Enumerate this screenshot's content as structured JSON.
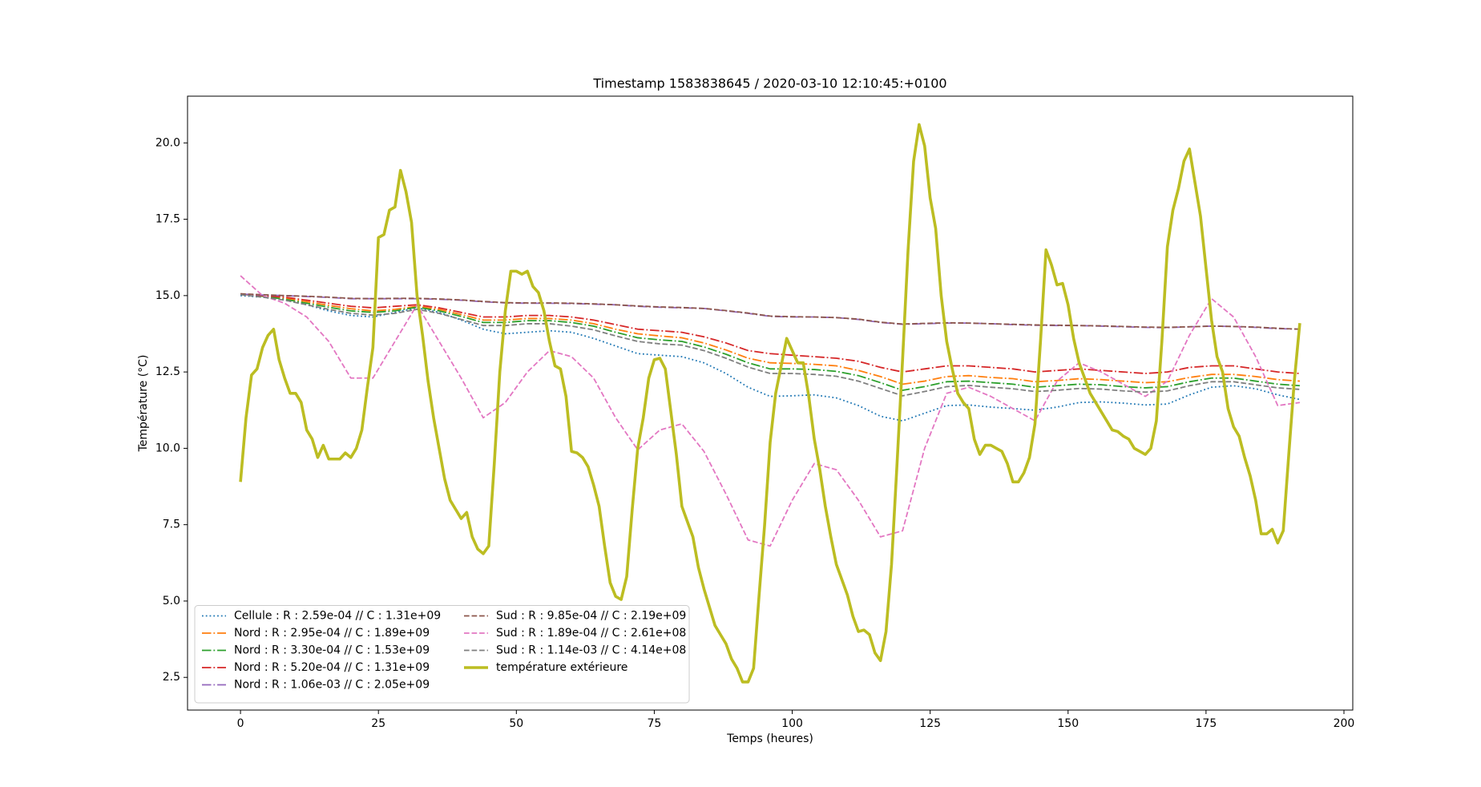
{
  "chart_data": {
    "type": "line",
    "title": "Timestamp 1583838645 / 2020-03-10 12:10:45:+0100",
    "x_label": "Temps (heures)",
    "y_label": "Température (°C)",
    "xlim": [
      -9.6,
      201.6
    ],
    "ylim": [
      1.43,
      21.53
    ],
    "xticks": [
      0,
      25,
      50,
      75,
      100,
      125,
      150,
      175,
      200
    ],
    "yticks": [
      2.5,
      {
        "value": 5,
        "label": "5.0"
      },
      7.5,
      {
        "value": 10,
        "label": "10.0"
      },
      12.5,
      {
        "value": 15,
        "label": "15.0"
      },
      17.5,
      {
        "value": 20,
        "label": "20.0"
      }
    ],
    "grid": false,
    "legend_loc": "lower left",
    "legend_ncol": 2,
    "x": [
      0,
      4,
      8,
      12,
      16,
      20,
      24,
      28,
      32,
      36,
      40,
      44,
      48,
      52,
      56,
      60,
      64,
      68,
      72,
      76,
      80,
      84,
      88,
      92,
      96,
      100,
      104,
      108,
      112,
      116,
      120,
      124,
      128,
      132,
      136,
      140,
      144,
      148,
      152,
      156,
      160,
      164,
      168,
      172,
      176,
      180,
      184,
      188,
      192
    ],
    "series": [
      {
        "name": "Cellule : R : 2.59e-04 // C : 1.31e+09",
        "color": "#1f77b4",
        "linestyle": "dotted",
        "linewidth": 1.5,
        "values": [
          15.0,
          14.95,
          14.85,
          14.7,
          14.5,
          14.35,
          14.3,
          14.45,
          14.6,
          14.45,
          14.2,
          13.9,
          13.75,
          13.8,
          13.85,
          13.8,
          13.6,
          13.35,
          13.1,
          13.05,
          13.0,
          12.8,
          12.45,
          12.0,
          11.7,
          11.72,
          11.75,
          11.65,
          11.4,
          11.05,
          10.9,
          11.15,
          11.4,
          11.42,
          11.35,
          11.3,
          11.25,
          11.35,
          11.5,
          11.52,
          11.48,
          11.42,
          11.45,
          11.75,
          12.0,
          12.05,
          11.95,
          11.75,
          11.6
        ]
      },
      {
        "name": "Nord : R : 2.95e-04 // C : 1.89e+09",
        "color": "#ff7f0e",
        "linestyle": "dashdot",
        "linewidth": 1.5,
        "values": [
          15.05,
          15.0,
          14.92,
          14.8,
          14.68,
          14.57,
          14.5,
          14.55,
          14.65,
          14.55,
          14.38,
          14.2,
          14.2,
          14.25,
          14.25,
          14.2,
          14.08,
          13.9,
          13.75,
          13.68,
          13.62,
          13.45,
          13.22,
          12.95,
          12.8,
          12.78,
          12.75,
          12.7,
          12.55,
          12.35,
          12.1,
          12.2,
          12.35,
          12.38,
          12.32,
          12.28,
          12.18,
          12.22,
          12.28,
          12.25,
          12.2,
          12.15,
          12.18,
          12.32,
          12.42,
          12.42,
          12.35,
          12.25,
          12.2
        ]
      },
      {
        "name": "Nord : R : 3.30e-04 // C : 1.53e+09",
        "color": "#2ca02c",
        "linestyle": "dashdot",
        "linewidth": 1.5,
        "values": [
          15.05,
          14.98,
          14.88,
          14.75,
          14.62,
          14.5,
          14.45,
          14.5,
          14.62,
          14.5,
          14.32,
          14.12,
          14.12,
          14.18,
          14.18,
          14.12,
          14.0,
          13.8,
          13.62,
          13.55,
          13.5,
          13.32,
          13.08,
          12.8,
          12.6,
          12.6,
          12.58,
          12.52,
          12.38,
          12.15,
          11.9,
          12.02,
          12.18,
          12.2,
          12.15,
          12.1,
          12.0,
          12.05,
          12.1,
          12.08,
          12.02,
          11.98,
          12.02,
          12.18,
          12.3,
          12.3,
          12.2,
          12.1,
          12.05
        ]
      },
      {
        "name": "Nord : R : 5.20e-04 // C : 1.31e+09",
        "color": "#d62728",
        "linestyle": "dashdot",
        "linewidth": 1.5,
        "values": [
          15.05,
          15.0,
          14.95,
          14.85,
          14.75,
          14.65,
          14.6,
          14.65,
          14.7,
          14.6,
          14.45,
          14.3,
          14.3,
          14.35,
          14.35,
          14.3,
          14.2,
          14.05,
          13.9,
          13.85,
          13.8,
          13.65,
          13.45,
          13.2,
          13.1,
          13.05,
          13.0,
          12.95,
          12.85,
          12.65,
          12.5,
          12.6,
          12.7,
          12.7,
          12.65,
          12.6,
          12.5,
          12.55,
          12.6,
          12.55,
          12.5,
          12.45,
          12.5,
          12.65,
          12.7,
          12.7,
          12.6,
          12.5,
          12.45
        ]
      },
      {
        "name": "Nord : R : 1.06e-03 // C : 2.05e+09",
        "color": "#9467bd",
        "linestyle": "dashdot",
        "linewidth": 1.5,
        "values": [
          15.05,
          15.02,
          15.0,
          14.97,
          14.94,
          14.9,
          14.9,
          14.9,
          14.9,
          14.88,
          14.85,
          14.8,
          14.76,
          14.75,
          14.75,
          14.74,
          14.72,
          14.7,
          14.65,
          14.62,
          14.6,
          14.58,
          14.5,
          14.42,
          14.32,
          14.3,
          14.3,
          14.28,
          14.22,
          14.12,
          14.06,
          14.08,
          14.1,
          14.1,
          14.08,
          14.05,
          14.03,
          14.02,
          14.02,
          14.0,
          13.98,
          13.96,
          13.95,
          13.98,
          14.0,
          13.99,
          13.96,
          13.92,
          13.9
        ]
      },
      {
        "name": "Sud : R : 9.85e-04 // C : 2.19e+09",
        "color": "#8c564b",
        "linestyle": "dashed",
        "linewidth": 1.5,
        "values": [
          15.06,
          15.03,
          15.0,
          14.98,
          14.95,
          14.91,
          14.9,
          14.91,
          14.91,
          14.89,
          14.86,
          14.81,
          14.77,
          14.76,
          14.76,
          14.75,
          14.73,
          14.7,
          14.66,
          14.63,
          14.61,
          14.58,
          14.51,
          14.43,
          14.33,
          14.31,
          14.3,
          14.28,
          14.23,
          14.13,
          14.07,
          14.09,
          14.11,
          14.1,
          14.08,
          14.06,
          14.04,
          14.03,
          14.02,
          14.01,
          13.99,
          13.97,
          13.96,
          13.98,
          14.0,
          13.99,
          13.97,
          13.93,
          13.9
        ]
      },
      {
        "name": "Sud : R : 1.89e-04 // C : 2.61e+08",
        "color": "#e377c2",
        "linestyle": "dashed",
        "linewidth": 1.5,
        "values": [
          15.65,
          15.0,
          14.75,
          14.3,
          13.5,
          12.3,
          12.3,
          13.5,
          14.7,
          13.5,
          12.3,
          11.0,
          11.5,
          12.5,
          13.2,
          13.0,
          12.3,
          11.0,
          9.95,
          10.6,
          10.8,
          9.9,
          8.5,
          7.0,
          6.8,
          8.3,
          9.5,
          9.3,
          8.3,
          7.1,
          7.3,
          10.0,
          11.8,
          12.0,
          11.7,
          11.3,
          10.9,
          12.2,
          12.8,
          12.5,
          12.1,
          11.7,
          12.2,
          13.7,
          14.9,
          14.3,
          13.0,
          11.4,
          11.5
        ]
      },
      {
        "name": "Sud : R : 1.14e-03 // C : 4.14e+08",
        "color": "#7f7f7f",
        "linestyle": "dashed",
        "linewidth": 1.5,
        "values": [
          15.03,
          14.95,
          14.85,
          14.7,
          14.55,
          14.42,
          14.36,
          14.42,
          14.55,
          14.42,
          14.22,
          14.02,
          14.02,
          14.08,
          14.08,
          14.0,
          13.88,
          13.68,
          13.5,
          13.42,
          13.38,
          13.2,
          12.95,
          12.66,
          12.45,
          12.45,
          12.42,
          12.36,
          12.2,
          11.96,
          11.72,
          11.86,
          12.02,
          12.06,
          12.0,
          11.95,
          11.86,
          11.9,
          11.96,
          11.94,
          11.88,
          11.84,
          11.88,
          12.05,
          12.18,
          12.18,
          12.08,
          11.98,
          11.93
        ]
      },
      {
        "name": "température extérieure",
        "color": "#bcbd22",
        "linestyle": "solid",
        "linewidth": 3,
        "x": [
          0,
          1,
          2,
          3,
          4,
          5,
          6,
          7,
          8,
          9,
          10,
          11,
          12,
          13,
          14,
          15,
          16,
          17,
          18,
          19,
          20,
          21,
          22,
          23,
          24,
          25,
          26,
          27,
          28,
          29,
          30,
          31,
          32,
          33,
          34,
          35,
          36,
          37,
          38,
          39,
          40,
          41,
          42,
          43,
          44,
          45,
          46,
          47,
          48,
          49,
          50,
          51,
          52,
          53,
          54,
          55,
          56,
          57,
          58,
          59,
          60,
          61,
          62,
          63,
          64,
          65,
          66,
          67,
          68,
          69,
          70,
          71,
          72,
          73,
          74,
          75,
          76,
          77,
          78,
          79,
          80,
          81,
          82,
          83,
          84,
          85,
          86,
          87,
          88,
          89,
          90,
          91,
          92,
          93,
          94,
          95,
          96,
          97,
          98,
          99,
          100,
          101,
          102,
          103,
          104,
          105,
          106,
          107,
          108,
          109,
          110,
          111,
          112,
          113,
          114,
          115,
          116,
          117,
          118,
          119,
          120,
          121,
          122,
          123,
          124,
          125,
          126,
          127,
          128,
          129,
          130,
          131,
          132,
          133,
          134,
          135,
          136,
          137,
          138,
          139,
          140,
          141,
          142,
          143,
          144,
          145,
          146,
          147,
          148,
          149,
          150,
          151,
          152,
          153,
          154,
          155,
          156,
          157,
          158,
          159,
          160,
          161,
          162,
          163,
          164,
          165,
          166,
          167,
          168,
          169,
          170,
          171,
          172,
          173,
          174,
          175,
          176,
          177,
          178,
          179,
          180,
          181,
          182,
          183,
          184,
          185,
          186,
          187,
          188,
          189,
          190,
          191,
          192
        ],
        "values": [
          8.9,
          11,
          12.4,
          12.6,
          13.3,
          13.7,
          13.9,
          12.9,
          12.3,
          11.8,
          11.8,
          11.5,
          10.6,
          10.3,
          9.7,
          10.1,
          9.65,
          9.65,
          9.65,
          9.85,
          9.7,
          10,
          10.6,
          12.0,
          13.3,
          16.9,
          17.0,
          17.8,
          17.9,
          19.1,
          18.4,
          17.4,
          15,
          13.7,
          12.2,
          11.0,
          10,
          9,
          8.3,
          8,
          7.7,
          7.9,
          7.1,
          6.7,
          6.55,
          6.8,
          9.5,
          12.5,
          14.5,
          15.8,
          15.8,
          15.7,
          15.8,
          15.3,
          15.1,
          14.5,
          13.5,
          12.7,
          12.6,
          11.7,
          9.9,
          9.85,
          9.7,
          9.4,
          8.8,
          8.1,
          6.8,
          5.6,
          5.15,
          5.05,
          5.8,
          8,
          10,
          11,
          12.3,
          12.9,
          12.95,
          12.6,
          11.2,
          9.8,
          8.1,
          7.6,
          7.1,
          6.1,
          5.4,
          4.8,
          4.2,
          3.9,
          3.6,
          3.1,
          2.8,
          2.35,
          2.35,
          2.8,
          5.2,
          7.5,
          10.2,
          11.8,
          12.7,
          13.6,
          13.2,
          12.8,
          12.8,
          11.7,
          10.3,
          9.3,
          8.1,
          7.1,
          6.2,
          5.7,
          5.2,
          4.5,
          4.0,
          4.05,
          3.9,
          3.3,
          3.05,
          4,
          6.2,
          9.5,
          12.9,
          16.5,
          19.4,
          20.6,
          19.9,
          18.2,
          17.2,
          15,
          13.5,
          12.6,
          11.8,
          11.5,
          11.3,
          10.3,
          9.8,
          10.1,
          10.1,
          10,
          9.9,
          9.5,
          8.9,
          8.9,
          9.2,
          9.7,
          10.8,
          13.5,
          16.5,
          16,
          15.35,
          15.4,
          14.7,
          13.6,
          12.8,
          12.3,
          11.8,
          11.5,
          11.2,
          10.9,
          10.6,
          10.55,
          10.4,
          10.3,
          10,
          9.9,
          9.8,
          10,
          10.9,
          13.5,
          16.6,
          17.8,
          18.5,
          19.4,
          19.8,
          18.7,
          17.6,
          15.9,
          14.2,
          13,
          12.5,
          11.3,
          10.7,
          10.4,
          9.7,
          9.1,
          8.3,
          7.2,
          7.2,
          7.35,
          6.9,
          7.3,
          9.8,
          12.2,
          14.1
        ]
      }
    ]
  }
}
